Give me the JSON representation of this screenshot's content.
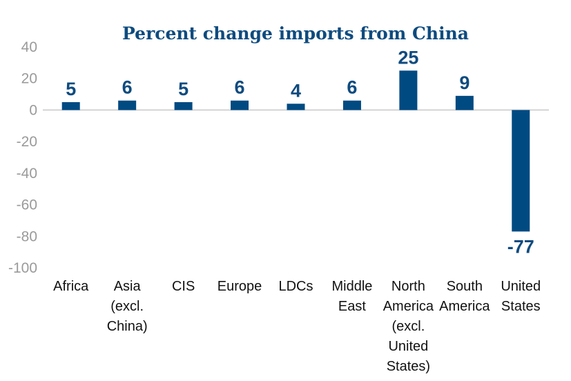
{
  "chart_data": {
    "type": "bar",
    "title": "Percent change imports from China",
    "xlabel": "",
    "ylabel": "",
    "ylim": [
      -100,
      40
    ],
    "yticks": [
      40,
      20,
      0,
      -20,
      -40,
      -60,
      -80,
      -100
    ],
    "grid": false,
    "categories": [
      "Africa",
      "Asia\n(excl.\nChina)",
      "CIS",
      "Europe",
      "LDCs",
      "Middle\nEast",
      "North\nAmerica\n(excl.\nUnited\nStates)",
      "South\nAmerica",
      "United\nStates"
    ],
    "values": [
      5,
      6,
      5,
      6,
      4,
      6,
      25,
      9,
      -77
    ],
    "data_labels": [
      "5",
      "6",
      "5",
      "6",
      "4",
      "6",
      "25",
      "9",
      "-77"
    ],
    "colors": {
      "bar": "#004a82",
      "title": "#0e4b7f",
      "axis": "#c8c8c8",
      "tick": "#9a9a9a"
    }
  }
}
